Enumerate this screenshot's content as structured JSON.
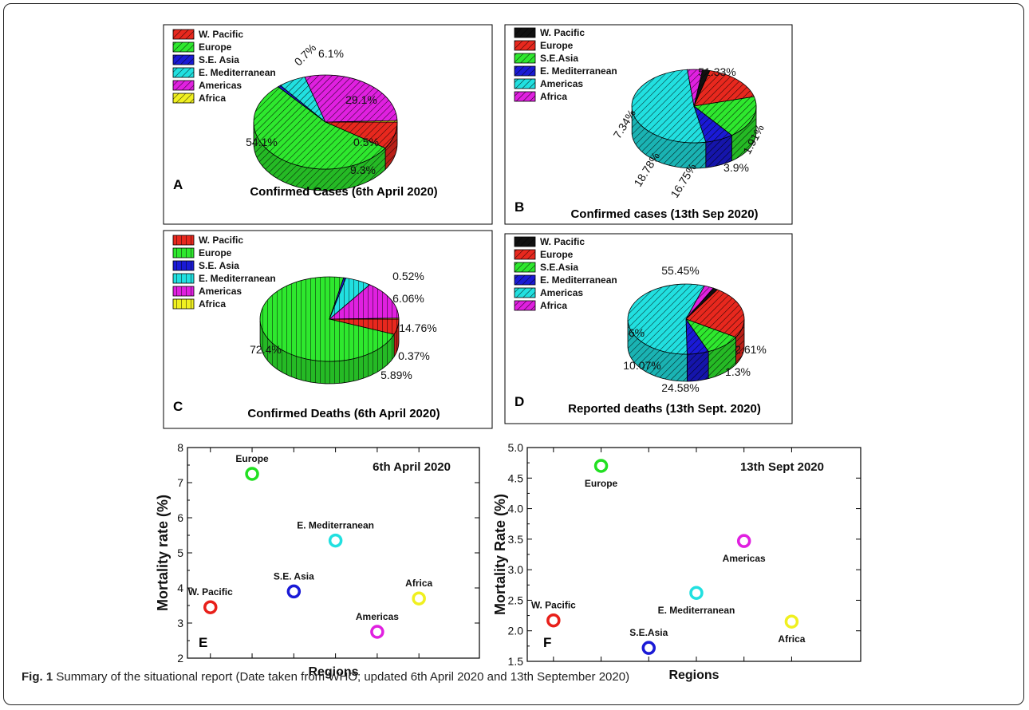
{
  "caption": {
    "label": "Fig. 1",
    "text": "Summary of the situational report (Date taken from WHO; updated 6th April 2020 and 13th September 2020)"
  },
  "chart_data": [
    {
      "panel": "A",
      "type": "pie",
      "style": "3d-hatched",
      "title": "Confirmed Cases (6th April 2020)",
      "legend": [
        "W. Pacific",
        "Europe",
        "S.E. Asia",
        "E. Mediterranean",
        "Americas",
        "Africa"
      ],
      "colors": [
        "#e8281e",
        "#2ee82e",
        "#1a1ad6",
        "#21e0e0",
        "#e020e0",
        "#f0f020"
      ],
      "slices": [
        {
          "name": "W. Pacific",
          "value": 9.3,
          "label": "9.3%"
        },
        {
          "name": "Europe",
          "value": 54.1,
          "label": "54.1%"
        },
        {
          "name": "S.E. Asia",
          "value": 0.7,
          "label": "0.7%"
        },
        {
          "name": "E. Mediterranean",
          "value": 6.1,
          "label": "6.1%"
        },
        {
          "name": "Americas",
          "value": 29.1,
          "label": "29.1%"
        },
        {
          "name": "Africa",
          "value": 0.5,
          "label": "0.5%"
        }
      ]
    },
    {
      "panel": "B",
      "type": "pie",
      "style": "3d-hatched",
      "title": "Confirmed cases (13th Sep 2020)",
      "legend": [
        "W. Pacific",
        "Europe",
        "S.E.Asia",
        "E. Mediterranean",
        "Americas",
        "Africa"
      ],
      "colors": [
        "#111111",
        "#e8281e",
        "#2ee82e",
        "#1a1ad6",
        "#21e0e0",
        "#e020e0"
      ],
      "slices": [
        {
          "name": "W. Pacific",
          "value": 1.91,
          "label": "1.91%"
        },
        {
          "name": "Europe",
          "value": 16.75,
          "label": "16.75%"
        },
        {
          "name": "S.E.Asia",
          "value": 18.78,
          "label": "18.78%"
        },
        {
          "name": "E. Mediterranean",
          "value": 7.34,
          "label": "7.34%"
        },
        {
          "name": "Americas",
          "value": 51.33,
          "label": "51.33%"
        },
        {
          "name": "Africa",
          "value": 3.9,
          "label": "3.9%"
        }
      ]
    },
    {
      "panel": "C",
      "type": "pie",
      "style": "3d-hatched",
      "title": "Confirmed Deaths (6th April 2020)",
      "legend": [
        "W. Pacific",
        "Europe",
        "S.E. Asia",
        "E. Mediterranean",
        "Americas",
        "Africa"
      ],
      "colors": [
        "#e8281e",
        "#2ee82e",
        "#1a1ad6",
        "#21e0e0",
        "#e020e0",
        "#f0f020"
      ],
      "slices": [
        {
          "name": "W. Pacific",
          "value": 5.89,
          "label": "5.89%"
        },
        {
          "name": "Europe",
          "value": 72.4,
          "label": "72.4%"
        },
        {
          "name": "S.E. Asia",
          "value": 0.52,
          "label": "0.52%"
        },
        {
          "name": "E. Mediterranean",
          "value": 6.06,
          "label": "6.06%"
        },
        {
          "name": "Americas",
          "value": 14.76,
          "label": "14.76%"
        },
        {
          "name": "Africa",
          "value": 0.37,
          "label": "0.37%"
        }
      ]
    },
    {
      "panel": "D",
      "type": "pie",
      "style": "3d-hatched",
      "title": "Reported deaths (13th Sept. 2020)",
      "legend": [
        "W. Pacific",
        "Europe",
        "S.E.Asia",
        "E. Mediterranean",
        "Americas",
        "Africa"
      ],
      "colors": [
        "#111111",
        "#e8281e",
        "#2ee82e",
        "#1a1ad6",
        "#21e0e0",
        "#e020e0"
      ],
      "slices": [
        {
          "name": "W. Pacific",
          "value": 1.3,
          "label": "1.3%"
        },
        {
          "name": "Europe",
          "value": 24.58,
          "label": "24.58%"
        },
        {
          "name": "S.E.Asia",
          "value": 10.07,
          "label": "10.07%"
        },
        {
          "name": "E. Mediterranean",
          "value": 6,
          "label": "6%"
        },
        {
          "name": "Americas",
          "value": 55.45,
          "label": "55.45%"
        },
        {
          "name": "Africa",
          "value": 2.61,
          "label": "2.61%"
        }
      ]
    },
    {
      "panel": "E",
      "type": "scatter",
      "title": "6th April 2020",
      "xlabel": "Regions",
      "ylabel": "Mortality rate (%)",
      "ylim": [
        2,
        8
      ],
      "yticks": [
        "2",
        "3",
        "4",
        "5",
        "6",
        "7",
        "8"
      ],
      "points": [
        {
          "name": "W. Pacific",
          "y": 3.45,
          "color": "#e8201a",
          "label_pos": "above"
        },
        {
          "name": "Europe",
          "y": 7.25,
          "color": "#22e022",
          "label_pos": "above"
        },
        {
          "name": "S.E. Asia",
          "y": 3.9,
          "color": "#1a1ad6",
          "label_pos": "above"
        },
        {
          "name": "E. Mediterranean",
          "y": 5.35,
          "color": "#21e0e0",
          "label_pos": "above"
        },
        {
          "name": "Americas",
          "y": 2.75,
          "color": "#e020e0",
          "label_pos": "above"
        },
        {
          "name": "Africa",
          "y": 3.7,
          "color": "#f0f020",
          "label_pos": "above"
        }
      ]
    },
    {
      "panel": "F",
      "type": "scatter",
      "title": "13th Sept 2020",
      "xlabel": "Regions",
      "ylabel": "Mortality Rate (%)",
      "ylim": [
        1.5,
        5.0
      ],
      "yticks": [
        "1.5",
        "2.0",
        "2.5",
        "3.0",
        "3.5",
        "4.0",
        "4.5",
        "5.0"
      ],
      "points": [
        {
          "name": "W. Pacific",
          "y": 2.17,
          "color": "#e8201a",
          "label_pos": "above"
        },
        {
          "name": "Europe",
          "y": 4.7,
          "color": "#22e022",
          "label_pos": "below"
        },
        {
          "name": "S.E.Asia",
          "y": 1.72,
          "color": "#1a1ad6",
          "label_pos": "above"
        },
        {
          "name": "E. Mediterranean",
          "y": 2.62,
          "color": "#21e0e0",
          "label_pos": "below"
        },
        {
          "name": "Americas",
          "y": 3.47,
          "color": "#e020e0",
          "label_pos": "below"
        },
        {
          "name": "Africa",
          "y": 2.15,
          "color": "#f0f020",
          "label_pos": "below"
        }
      ]
    }
  ]
}
